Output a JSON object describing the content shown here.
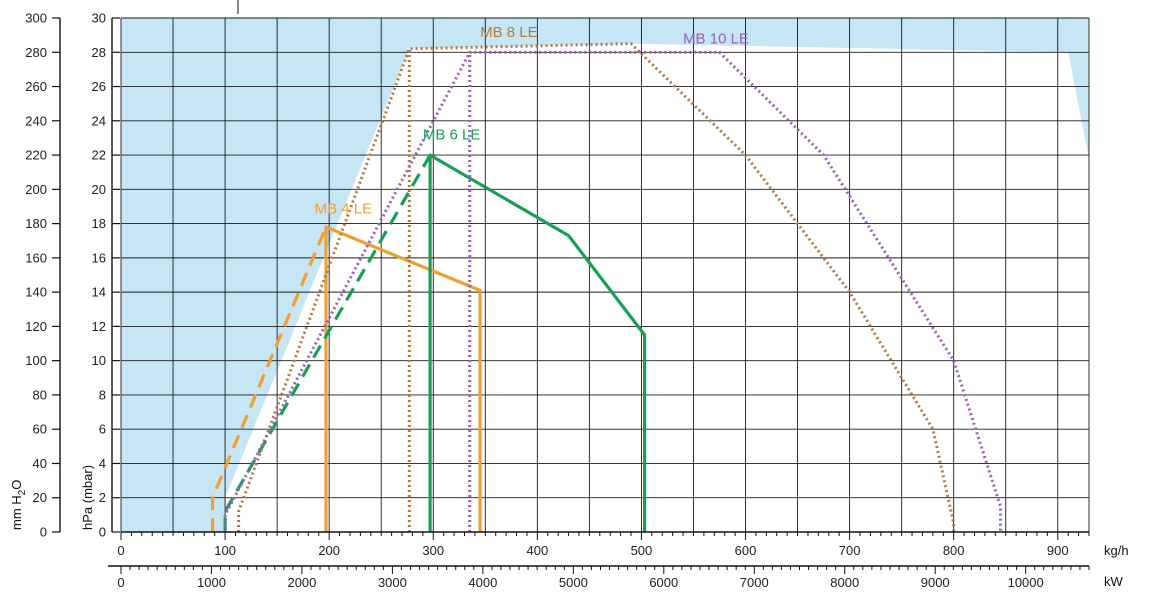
{
  "chart_data": {
    "type": "line",
    "title": "",
    "axes": {
      "left_outer": {
        "label_parts": [
          "mm H",
          "2",
          "O"
        ],
        "range": [
          0,
          300
        ],
        "ticks": [
          0,
          20,
          40,
          60,
          80,
          100,
          120,
          140,
          160,
          180,
          200,
          220,
          240,
          260,
          280,
          300
        ]
      },
      "left_inner": {
        "label": "hPa (mbar)",
        "range": [
          0,
          30
        ],
        "ticks": [
          0,
          2,
          4,
          6,
          8,
          10,
          12,
          14,
          16,
          18,
          20,
          22,
          24,
          26,
          28,
          30
        ]
      },
      "bottom_primary": {
        "unit": "kg/h",
        "range": [
          0,
          930
        ],
        "ticks": [
          0,
          100,
          200,
          300,
          400,
          500,
          600,
          700,
          800,
          900
        ]
      },
      "bottom_secondary": {
        "unit": "kW",
        "range": [
          0,
          10700
        ],
        "ticks": [
          0,
          1000,
          2000,
          3000,
          4000,
          5000,
          6000,
          7000,
          8000,
          9000,
          10000
        ]
      }
    },
    "grid": true,
    "colors": {
      "background": "#c6e6f5",
      "working_area": "#ffffff",
      "grid": "#1a1a1a",
      "MB 4 LE": "#f0a030",
      "MB 6 LE": "#17a055",
      "MB 8 LE": "#b5783a",
      "MB 10 LE": "#9b5fb5"
    },
    "working_area": [
      [
        100,
        0
      ],
      [
        100,
        2
      ],
      [
        277,
        28.2
      ],
      [
        490,
        28.5
      ],
      [
        910,
        28
      ],
      [
        1000,
        0
      ]
    ],
    "series": [
      {
        "name": "MB 4 LE",
        "style": "solid",
        "x": [
          88,
          88,
          197,
          197,
          345,
          345
        ],
        "y": [
          0,
          2,
          17.8,
          17.8,
          14.1,
          0
        ],
        "solid_path": [
          [
            197,
            0
          ],
          [
            197,
            17.8
          ],
          [
            345,
            14.1
          ],
          [
            345,
            0
          ]
        ],
        "dashed_path": [
          [
            88,
            0
          ],
          [
            88,
            2
          ],
          [
            197,
            17.8
          ]
        ]
      },
      {
        "name": "MB 6 LE",
        "style": "solid",
        "solid_path": [
          [
            297,
            0
          ],
          [
            297,
            22
          ],
          [
            430,
            17.3
          ],
          [
            503,
            11.5
          ],
          [
            503,
            0
          ]
        ],
        "dashed_path": [
          [
            100,
            0
          ],
          [
            100,
            1.2
          ],
          [
            297,
            22
          ]
        ]
      },
      {
        "name": "MB 8 LE",
        "style": "dotted",
        "outer_path": [
          [
            113,
            0
          ],
          [
            113,
            1.2
          ],
          [
            277,
            28.2
          ],
          [
            490,
            28.5
          ],
          [
            600,
            22
          ],
          [
            700,
            14
          ],
          [
            780,
            6
          ],
          [
            800,
            0.5
          ],
          [
            800,
            0
          ]
        ],
        "inner_path": [
          [
            277,
            0
          ],
          [
            277,
            28.2
          ]
        ]
      },
      {
        "name": "MB 10 LE",
        "style": "dotted",
        "outer_path": [
          [
            100,
            0
          ],
          [
            100,
            1
          ],
          [
            335,
            28
          ],
          [
            575,
            28
          ],
          [
            675,
            22
          ],
          [
            800,
            10
          ],
          [
            845,
            1.5
          ],
          [
            845,
            0
          ]
        ],
        "inner_path": [
          [
            335,
            0
          ],
          [
            335,
            28
          ]
        ]
      }
    ],
    "annotations": [
      {
        "text": "MB 4 LE",
        "x": 186,
        "y": 18.6,
        "series": "MB 4 LE"
      },
      {
        "text": "MB 6 LE",
        "x": 290,
        "y": 22.9,
        "series": "MB 6 LE"
      },
      {
        "text": "MB 8 LE",
        "x": 345,
        "y": 28.9,
        "series": "MB 8 LE"
      },
      {
        "text": "MB 10 LE",
        "x": 540,
        "y": 28.5,
        "series": "MB 10 LE"
      }
    ]
  }
}
